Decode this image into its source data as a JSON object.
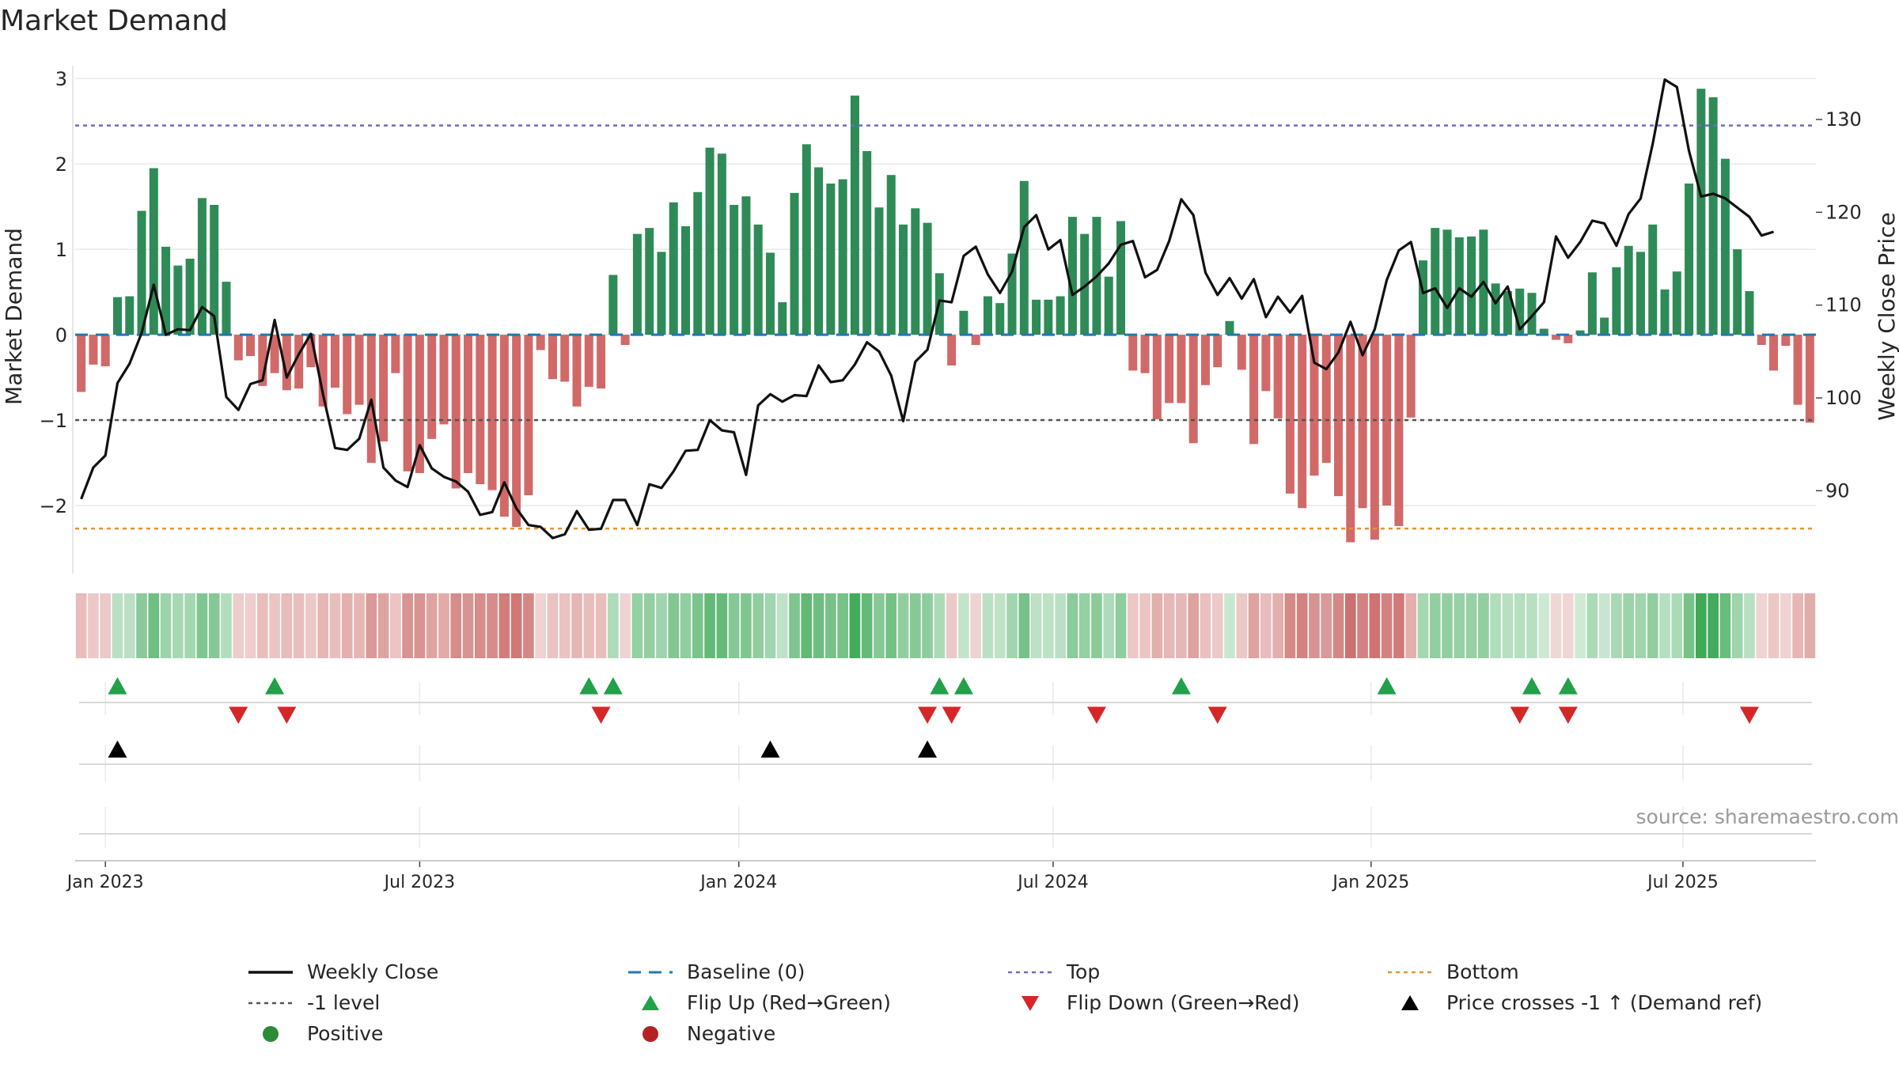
{
  "title": "Market Demand",
  "source": "source: sharemaestro.com",
  "chart_data": {
    "type": "bar",
    "y_label": "Market Demand",
    "y2_label": "Weekly Close Price",
    "y_ticks": [
      -2,
      -1,
      0,
      1,
      2,
      3
    ],
    "y_tick_labels": [
      "−2",
      "−1",
      "0",
      "1",
      "2",
      "3"
    ],
    "y_range": [
      -2.75,
      3.15
    ],
    "y2_ticks": [
      90,
      100,
      110,
      120,
      130
    ],
    "y2_range": [
      81.5,
      135.8
    ],
    "x_ticks": [
      {
        "week": 2,
        "label": "Jan 2023"
      },
      {
        "week": 28,
        "label": "Jul 2023"
      },
      {
        "week": 54.4,
        "label": "Jan 2024"
      },
      {
        "week": 80.4,
        "label": "Jul 2024"
      },
      {
        "week": 106.7,
        "label": "Jan 2025"
      },
      {
        "week": 132.5,
        "label": "Jul 2025"
      }
    ],
    "start_week_label": "week 0 = late Dec 2022, weekly bars",
    "reference_lines": {
      "top": 2.45,
      "bottom": -2.27,
      "minus_one": -1,
      "baseline": 0
    },
    "demand": [
      -0.67,
      -0.35,
      -0.37,
      0.44,
      0.45,
      1.45,
      1.95,
      1.03,
      0.81,
      0.89,
      1.6,
      1.52,
      0.62,
      -0.3,
      -0.25,
      -0.6,
      -0.45,
      -0.65,
      -0.63,
      -0.38,
      -0.84,
      -0.62,
      -0.93,
      -0.82,
      -1.5,
      -1.25,
      -0.45,
      -1.6,
      -1.62,
      -1.22,
      -1.05,
      -1.8,
      -1.62,
      -1.75,
      -1.82,
      -2.13,
      -2.25,
      -1.88,
      -0.18,
      -0.52,
      -0.55,
      -0.84,
      -0.61,
      -0.63,
      0.7,
      -0.12,
      1.18,
      1.25,
      0.97,
      1.55,
      1.27,
      1.67,
      2.19,
      2.12,
      1.52,
      1.62,
      1.29,
      0.96,
      0.38,
      1.66,
      2.23,
      1.96,
      1.77,
      1.82,
      2.8,
      2.15,
      1.49,
      1.87,
      1.29,
      1.48,
      1.31,
      0.72,
      -0.36,
      0.28,
      -0.12,
      0.45,
      0.37,
      0.95,
      1.8,
      0.41,
      0.41,
      0.45,
      1.38,
      1.18,
      1.38,
      0.68,
      1.33,
      -0.42,
      -0.45,
      -0.99,
      -0.8,
      -0.8,
      -1.27,
      -0.59,
      -0.38,
      0.16,
      -0.41,
      -1.28,
      -0.66,
      -0.98,
      -1.86,
      -2.03,
      -1.65,
      -1.5,
      -1.89,
      -2.43,
      -2.03,
      -2.4,
      -2.0,
      -2.24,
      -0.97,
      0.87,
      1.25,
      1.23,
      1.14,
      1.15,
      1.23,
      0.6,
      0.51,
      0.54,
      0.49,
      0.07,
      -0.06,
      -0.1,
      0.05,
      0.73,
      0.2,
      0.79,
      1.04,
      0.97,
      1.29,
      0.53,
      0.74,
      1.77,
      2.88,
      2.78,
      2.06,
      1.0,
      0.51,
      -0.12,
      -0.42,
      -0.13,
      -0.82,
      -1.03
    ],
    "close": [
      89.1,
      92.5,
      93.8,
      101.6,
      103.7,
      107.0,
      112.2,
      106.8,
      107.4,
      107.3,
      109.8,
      108.8,
      100.1,
      98.7,
      101.5,
      101.9,
      108.4,
      102.2,
      104.7,
      106.9,
      100.4,
      94.6,
      94.4,
      95.6,
      99.8,
      92.5,
      91.1,
      90.4,
      94.9,
      92.4,
      91.5,
      91.0,
      89.9,
      87.4,
      87.7,
      90.9,
      88.1,
      86.3,
      86.1,
      84.9,
      85.3,
      87.8,
      85.8,
      85.9,
      89.0,
      89.0,
      86.3,
      90.7,
      90.3,
      92.1,
      94.3,
      94.4,
      97.6,
      96.5,
      96.3,
      91.7,
      99.2,
      100.4,
      99.6,
      100.3,
      100.2,
      103.5,
      101.7,
      101.9,
      103.6,
      106.0,
      105.0,
      102.4,
      97.5,
      103.9,
      105.2,
      110.5,
      110.3,
      115.3,
      116.3,
      113.3,
      111.3,
      113.6,
      118.4,
      119.7,
      116.0,
      117.0,
      111.1,
      112.0,
      113.1,
      114.5,
      116.5,
      116.9,
      113.0,
      113.8,
      116.9,
      121.4,
      119.7,
      113.5,
      111.1,
      112.9,
      110.7,
      112.8,
      108.7,
      110.9,
      109.2,
      111.0,
      103.8,
      103.1,
      104.9,
      108.2,
      104.6,
      107.4,
      112.7,
      115.9,
      116.8,
      111.3,
      111.8,
      109.7,
      111.8,
      110.9,
      112.5,
      110.2,
      112.0,
      107.4,
      108.8,
      110.3,
      117.4,
      115.1,
      116.8,
      119.1,
      118.8,
      116.4,
      119.8,
      121.5,
      127.4,
      134.3,
      133.5,
      126.6,
      121.7,
      122.0,
      121.5,
      120.5,
      119.5,
      117.5,
      117.9
    ],
    "flip_up_weeks": [
      3,
      16,
      42,
      44,
      71,
      73,
      91,
      108,
      120,
      123
    ],
    "flip_down_weeks": [
      13,
      17,
      43,
      70,
      72,
      84,
      94,
      119,
      123,
      138
    ],
    "cross_weeks": [
      3,
      57,
      70
    ],
    "legend": [
      {
        "key": "close",
        "label": "Weekly Close",
        "color": "#111111"
      },
      {
        "key": "baseline",
        "label": "Baseline (0)",
        "color": "#1f77b4"
      },
      {
        "key": "top",
        "label": "Top",
        "color": "#6b6bc8"
      },
      {
        "key": "bottom",
        "label": "Bottom",
        "color": "#e8922e"
      },
      {
        "key": "minus_one",
        "label": "-1 level",
        "color": "#555555"
      },
      {
        "key": "flip_up",
        "label": "Flip Up (Red→Green)",
        "color": "#22a04a"
      },
      {
        "key": "flip_down",
        "label": "Flip Down (Green→Red)",
        "color": "#d62728"
      },
      {
        "key": "cross",
        "label": "Price crosses -1 ↑ (Demand ref)",
        "color": "#000000"
      },
      {
        "key": "positive",
        "label": "Positive",
        "color": "#2e8b3a"
      },
      {
        "key": "negative",
        "label": "Negative",
        "color": "#b22222"
      }
    ],
    "colors": {
      "positive_bar": "#2e8b57",
      "negative_bar": "#cd5c5c",
      "close": "#111111",
      "grid": "#e9e9e9"
    }
  }
}
